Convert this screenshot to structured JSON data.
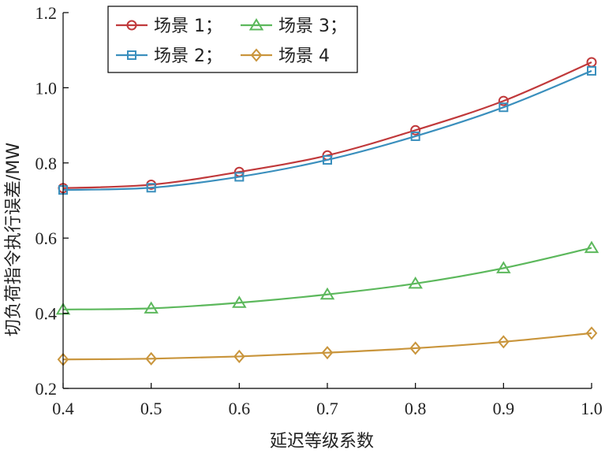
{
  "chart_data": {
    "type": "line",
    "title": "",
    "xlabel": "延迟等级系数",
    "ylabel": "切负荷指令执行误差/MW",
    "xlim": [
      0.4,
      1.0
    ],
    "ylim": [
      0.2,
      1.2
    ],
    "x": [
      0.4,
      0.5,
      0.6,
      0.7,
      0.8,
      0.9,
      1.0
    ],
    "x_tick_labels": [
      "0.4",
      "0.5",
      "0.6",
      "0.7",
      "0.8",
      "0.9",
      "1.0"
    ],
    "y_ticks": [
      0.2,
      0.4,
      0.6,
      0.8,
      1.0,
      1.2
    ],
    "y_tick_labels": [
      "0.2",
      "0.4",
      "0.6",
      "0.8",
      "1.0",
      "1.2"
    ],
    "grid": false,
    "legend_position": "top-left",
    "series": [
      {
        "name": "场景 1；",
        "marker": "circle",
        "color": "#c0393b",
        "values": [
          0.733,
          0.742,
          0.776,
          0.82,
          0.887,
          0.965,
          1.068
        ]
      },
      {
        "name": "场景 2；",
        "marker": "square",
        "color": "#3a8fbd",
        "values": [
          0.728,
          0.734,
          0.763,
          0.808,
          0.871,
          0.948,
          1.045
        ]
      },
      {
        "name": "场景 3；",
        "marker": "triangle",
        "color": "#5cb85c",
        "values": [
          0.41,
          0.413,
          0.428,
          0.45,
          0.479,
          0.52,
          0.574
        ]
      },
      {
        "name": "场景 4",
        "marker": "diamond",
        "color": "#c9953c",
        "values": [
          0.277,
          0.279,
          0.285,
          0.295,
          0.307,
          0.324,
          0.347
        ]
      }
    ]
  }
}
